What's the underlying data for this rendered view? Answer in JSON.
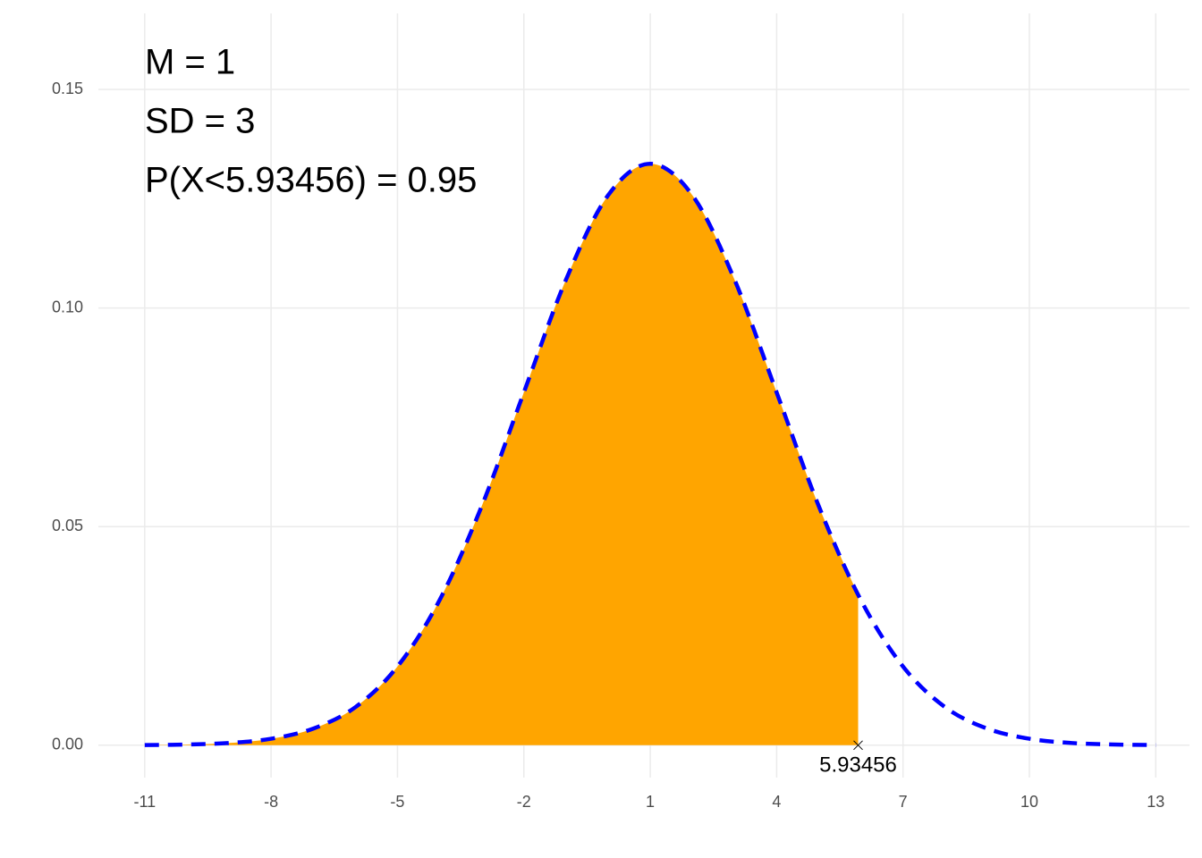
{
  "chart_data": {
    "type": "area",
    "annotations": [
      "M = 1",
      "SD = 3",
      "P(X<5.93456) = 0.95"
    ],
    "curve": {
      "color": "#0000ff",
      "x": [
        -11,
        -10,
        -9,
        -8,
        -7,
        -6,
        -5,
        -4,
        -3,
        -2,
        -1,
        0,
        1,
        2,
        3,
        4,
        5,
        6,
        7,
        8,
        9,
        10,
        11,
        12,
        13
      ],
      "values": [
        4e-05,
        0.00016,
        0.00051,
        0.00148,
        0.0038,
        0.0087,
        0.018,
        0.0332,
        0.0547,
        0.0807,
        0.1065,
        0.1258,
        0.133,
        0.1258,
        0.1065,
        0.0807,
        0.0547,
        0.0332,
        0.018,
        0.0087,
        0.0038,
        0.00148,
        0.00051,
        0.00016,
        4e-05
      ]
    },
    "shade": {
      "color": "#ffa500",
      "x": [
        -11,
        -10,
        -9,
        -8,
        -7,
        -6,
        -5,
        -4,
        -3,
        -2,
        -1,
        0,
        1,
        2,
        3,
        4,
        5,
        5.93456
      ],
      "values": [
        4e-05,
        0.00016,
        0.00051,
        0.00148,
        0.0038,
        0.0087,
        0.018,
        0.0332,
        0.0547,
        0.0807,
        0.1065,
        0.1258,
        0.133,
        0.1258,
        0.1065,
        0.0807,
        0.0547,
        0.0344
      ]
    },
    "cutoff": 5.93456,
    "xlim": [
      -12.1,
      13.8
    ],
    "ylim": [
      -0.0074,
      0.1674
    ],
    "xticks": [
      -11,
      -8,
      -5,
      -2,
      1,
      4,
      7,
      10,
      13
    ],
    "yticks": [
      {
        "value": 0,
        "label": "0.00"
      },
      {
        "value": 0.05,
        "label": "0.05"
      },
      {
        "value": 0.1,
        "label": "0.10"
      },
      {
        "value": 0.15,
        "label": "0.15"
      }
    ],
    "grid": true
  }
}
